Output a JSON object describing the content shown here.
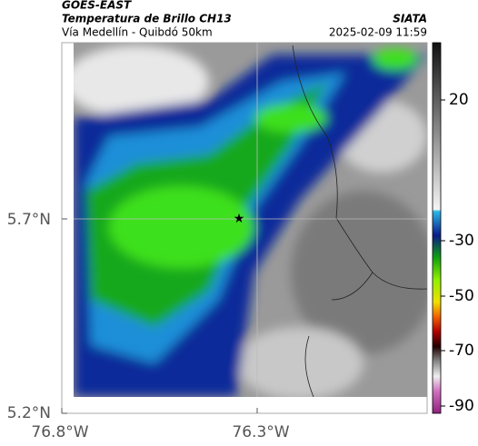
{
  "header": {
    "title": "GOES-EAST",
    "subtitle": "Temperatura de Brillo CH13",
    "location": "Vía Medellín - Quibdó 50km",
    "source": "SIATA",
    "datetime": "2025-02-09 11:59"
  },
  "map": {
    "lat_labels": [
      "5.7°N",
      "5.2°N"
    ],
    "lon_labels": [
      "76.8°W",
      "76.3°W"
    ]
  },
  "colorbar": {
    "ticks": [
      20,
      -30,
      -50,
      -70,
      -90
    ]
  }
}
